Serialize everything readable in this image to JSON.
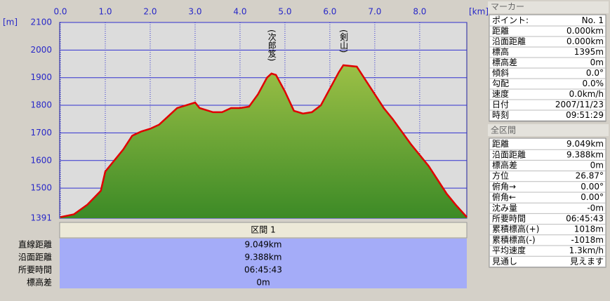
{
  "chart_data": {
    "type": "area",
    "x_unit": "[km]",
    "y_unit": "[m]",
    "x": [
      0,
      0.3,
      0.6,
      0.9,
      1.0,
      1.2,
      1.4,
      1.6,
      1.8,
      2.0,
      2.2,
      2.4,
      2.6,
      2.8,
      3.0,
      3.1,
      3.4,
      3.6,
      3.8,
      4.0,
      4.2,
      4.4,
      4.6,
      4.7,
      4.8,
      5.0,
      5.2,
      5.4,
      5.6,
      5.8,
      6.0,
      6.2,
      6.3,
      6.6,
      6.8,
      7.0,
      7.2,
      7.4,
      7.6,
      7.8,
      8.0,
      8.2,
      8.4,
      8.6,
      8.8,
      9.049
    ],
    "values": [
      1395,
      1405,
      1440,
      1490,
      1560,
      1600,
      1640,
      1690,
      1705,
      1715,
      1730,
      1760,
      1790,
      1800,
      1810,
      1790,
      1775,
      1775,
      1790,
      1790,
      1795,
      1840,
      1900,
      1915,
      1910,
      1850,
      1780,
      1770,
      1775,
      1800,
      1860,
      1920,
      1945,
      1940,
      1890,
      1840,
      1790,
      1750,
      1705,
      1660,
      1620,
      1580,
      1530,
      1480,
      1440,
      1395
    ],
    "color": "#e00000",
    "xlim": [
      0,
      9.049
    ],
    "ylim": [
      1391,
      2100
    ],
    "xticks": [
      {
        "value": 0,
        "label": "0.0"
      },
      {
        "value": 1,
        "label": "1.0"
      },
      {
        "value": 2,
        "label": "2.0"
      },
      {
        "value": 3,
        "label": "3.0"
      },
      {
        "value": 4,
        "label": "4.0"
      },
      {
        "value": 5,
        "label": "5.0"
      },
      {
        "value": 6,
        "label": "6.0"
      },
      {
        "value": 7,
        "label": "7.0"
      },
      {
        "value": 8,
        "label": "8.0"
      }
    ],
    "yticks": [
      1391,
      1500,
      1600,
      1700,
      1800,
      1900,
      2000,
      2100
    ],
    "annotations": [
      {
        "text": "(次郎笈)",
        "x": 4.7
      },
      {
        "text": "(剣山)",
        "x": 6.3
      }
    ]
  },
  "section": {
    "title": "区間 1",
    "rows": [
      [
        "直線距離",
        "9.049km"
      ],
      [
        "沿面距離",
        "9.388km"
      ],
      [
        "所要時間",
        "06:45:43"
      ],
      [
        "標高差",
        "0m"
      ]
    ]
  },
  "marker": {
    "title": "マーカー",
    "rows": [
      [
        "ポイント:",
        "No. 1"
      ],
      [
        "距離",
        "0.000km"
      ],
      [
        "沿面距離",
        "0.000km"
      ],
      [
        "標高",
        "1395m"
      ],
      [
        "標高差",
        "0m"
      ],
      [
        "傾斜",
        "0.0°"
      ],
      [
        "勾配",
        "0.0%"
      ],
      [
        "速度",
        "0.0km/h"
      ],
      [
        "日付",
        "2007/11/23"
      ],
      [
        "時刻",
        "09:51:29"
      ]
    ]
  },
  "total": {
    "title": "全区間",
    "rows": [
      [
        "距離",
        "9.049km"
      ],
      [
        "沿面距離",
        "9.388km"
      ],
      [
        "標高差",
        "0m"
      ],
      [
        "方位",
        "26.87°"
      ],
      [
        "俯角→",
        "0.00°"
      ],
      [
        "俯角←",
        "0.00°"
      ],
      [
        "沈み量",
        "-0m"
      ],
      [
        "所要時間",
        "06:45:43"
      ],
      [
        "累積標高(+)",
        "1018m"
      ],
      [
        "累積標高(-)",
        "-1018m"
      ],
      [
        "平均速度",
        "1.3km/h"
      ],
      [
        "見通し",
        "見えます"
      ]
    ]
  }
}
